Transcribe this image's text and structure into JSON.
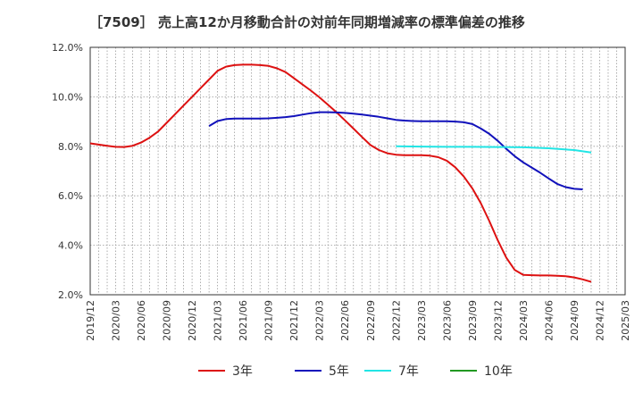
{
  "chart_data": {
    "type": "line",
    "title": "［7509］ 売上高12か月移動合計の対前年同期増減率の標準偏差の推移",
    "xlabel": "",
    "ylabel": "",
    "ylim": [
      2.0,
      12.0
    ],
    "y_ticks": [
      "2.0%",
      "4.0%",
      "6.0%",
      "8.0%",
      "10.0%",
      "12.0%"
    ],
    "x_ticks": [
      "2019/12",
      "2020/03",
      "2020/06",
      "2020/09",
      "2020/12",
      "2021/03",
      "2021/06",
      "2021/09",
      "2021/12",
      "2022/03",
      "2022/06",
      "2022/09",
      "2022/12",
      "2023/03",
      "2023/06",
      "2023/09",
      "2023/12",
      "2024/03",
      "2024/06",
      "2024/09",
      "2024/12",
      "2025/03"
    ],
    "grid": true,
    "legend_position": "bottom",
    "series": [
      {
        "name": "3年",
        "color": "#dd1111",
        "points": [
          [
            "2019/12",
            8.12
          ],
          [
            "2020/01",
            8.07
          ],
          [
            "2020/02",
            8.02
          ],
          [
            "2020/03",
            7.98
          ],
          [
            "2020/04",
            7.97
          ],
          [
            "2020/05",
            8.02
          ],
          [
            "2020/06",
            8.15
          ],
          [
            "2020/07",
            8.35
          ],
          [
            "2020/08",
            8.6
          ],
          [
            "2020/09",
            8.95
          ],
          [
            "2020/10",
            9.3
          ],
          [
            "2020/11",
            9.65
          ],
          [
            "2020/12",
            10.0
          ],
          [
            "2021/01",
            10.35
          ],
          [
            "2021/02",
            10.7
          ],
          [
            "2021/03",
            11.05
          ],
          [
            "2021/04",
            11.22
          ],
          [
            "2021/05",
            11.28
          ],
          [
            "2021/06",
            11.3
          ],
          [
            "2021/07",
            11.3
          ],
          [
            "2021/08",
            11.28
          ],
          [
            "2021/09",
            11.25
          ],
          [
            "2021/10",
            11.15
          ],
          [
            "2021/11",
            11.0
          ],
          [
            "2021/12",
            10.75
          ],
          [
            "2022/01",
            10.5
          ],
          [
            "2022/02",
            10.25
          ],
          [
            "2022/03",
            9.98
          ],
          [
            "2022/04",
            9.68
          ],
          [
            "2022/05",
            9.38
          ],
          [
            "2022/06",
            9.05
          ],
          [
            "2022/07",
            8.72
          ],
          [
            "2022/08",
            8.38
          ],
          [
            "2022/09",
            8.05
          ],
          [
            "2022/10",
            7.85
          ],
          [
            "2022/11",
            7.72
          ],
          [
            "2022/12",
            7.66
          ],
          [
            "2023/01",
            7.64
          ],
          [
            "2023/02",
            7.64
          ],
          [
            "2023/03",
            7.64
          ],
          [
            "2023/04",
            7.62
          ],
          [
            "2023/05",
            7.56
          ],
          [
            "2023/06",
            7.42
          ],
          [
            "2023/07",
            7.15
          ],
          [
            "2023/08",
            6.78
          ],
          [
            "2023/09",
            6.3
          ],
          [
            "2023/10",
            5.7
          ],
          [
            "2023/11",
            4.98
          ],
          [
            "2023/12",
            4.2
          ],
          [
            "2024/01",
            3.5
          ],
          [
            "2024/02",
            3.0
          ],
          [
            "2024/03",
            2.8
          ],
          [
            "2024/04",
            2.79
          ],
          [
            "2024/05",
            2.78
          ],
          [
            "2024/06",
            2.78
          ],
          [
            "2024/07",
            2.77
          ],
          [
            "2024/08",
            2.75
          ],
          [
            "2024/09",
            2.7
          ],
          [
            "2024/10",
            2.62
          ],
          [
            "2024/11",
            2.52
          ]
        ]
      },
      {
        "name": "5年",
        "color": "#1111bb",
        "points": [
          [
            "2021/02",
            8.82
          ],
          [
            "2021/03",
            9.02
          ],
          [
            "2021/04",
            9.1
          ],
          [
            "2021/05",
            9.12
          ],
          [
            "2021/06",
            9.12
          ],
          [
            "2021/07",
            9.12
          ],
          [
            "2021/08",
            9.12
          ],
          [
            "2021/09",
            9.13
          ],
          [
            "2021/10",
            9.15
          ],
          [
            "2021/11",
            9.18
          ],
          [
            "2021/12",
            9.22
          ],
          [
            "2022/01",
            9.28
          ],
          [
            "2022/02",
            9.34
          ],
          [
            "2022/03",
            9.38
          ],
          [
            "2022/04",
            9.38
          ],
          [
            "2022/05",
            9.37
          ],
          [
            "2022/06",
            9.35
          ],
          [
            "2022/07",
            9.32
          ],
          [
            "2022/08",
            9.28
          ],
          [
            "2022/09",
            9.24
          ],
          [
            "2022/10",
            9.19
          ],
          [
            "2022/11",
            9.13
          ],
          [
            "2022/12",
            9.07
          ],
          [
            "2023/01",
            9.04
          ],
          [
            "2023/02",
            9.02
          ],
          [
            "2023/03",
            9.01
          ],
          [
            "2023/04",
            9.01
          ],
          [
            "2023/05",
            9.01
          ],
          [
            "2023/06",
            9.01
          ],
          [
            "2023/07",
            9.0
          ],
          [
            "2023/08",
            8.97
          ],
          [
            "2023/09",
            8.9
          ],
          [
            "2023/10",
            8.72
          ],
          [
            "2023/11",
            8.5
          ],
          [
            "2023/12",
            8.22
          ],
          [
            "2024/01",
            7.9
          ],
          [
            "2024/02",
            7.6
          ],
          [
            "2024/03",
            7.35
          ],
          [
            "2024/04",
            7.14
          ],
          [
            "2024/05",
            6.93
          ],
          [
            "2024/06",
            6.7
          ],
          [
            "2024/07",
            6.48
          ],
          [
            "2024/08",
            6.35
          ],
          [
            "2024/09",
            6.28
          ],
          [
            "2024/10",
            6.26
          ]
        ]
      },
      {
        "name": "7年",
        "color": "#22e5e5",
        "points": [
          [
            "2022/12",
            8.0
          ],
          [
            "2023/03",
            7.99
          ],
          [
            "2023/06",
            7.98
          ],
          [
            "2023/09",
            7.98
          ],
          [
            "2023/12",
            7.97
          ],
          [
            "2024/03",
            7.96
          ],
          [
            "2024/06",
            7.92
          ],
          [
            "2024/09",
            7.85
          ],
          [
            "2024/11",
            7.75
          ]
        ]
      },
      {
        "name": "10年",
        "color": "#229922",
        "points": []
      }
    ]
  }
}
